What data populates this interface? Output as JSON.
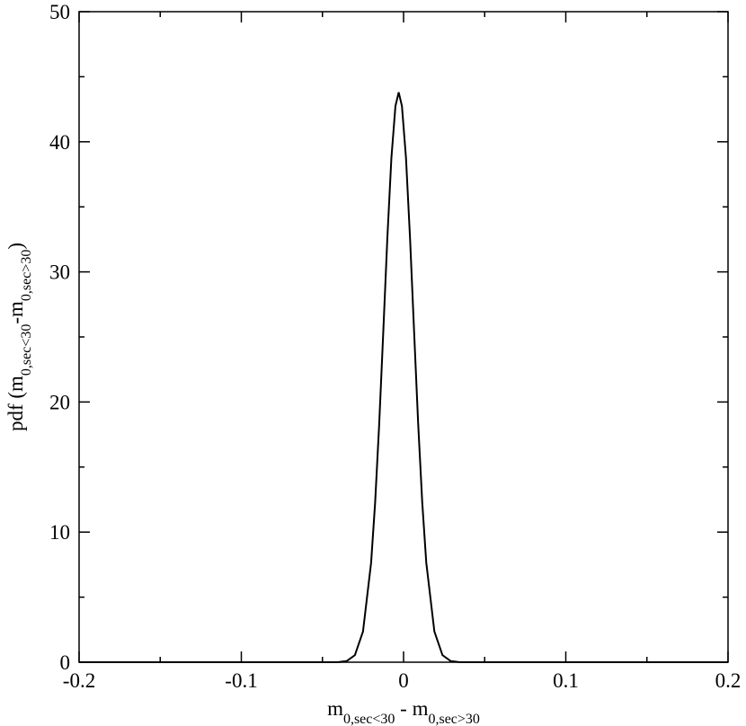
{
  "chart_data": {
    "type": "line",
    "xlabel": [
      {
        "text": "m"
      },
      {
        "text": "0,sec<30",
        "sub": true
      },
      {
        "text": " - m"
      },
      {
        "text": "0,sec>30",
        "sub": true
      }
    ],
    "ylabel": [
      {
        "text": "pdf (m"
      },
      {
        "text": "0,sec<30",
        "sub": true
      },
      {
        "text": "-m"
      },
      {
        "text": "0,sec>30",
        "sub": true
      },
      {
        "text": ")"
      }
    ],
    "x": [
      -0.2,
      -0.05,
      -0.04,
      -0.035,
      -0.03,
      -0.025,
      -0.02,
      -0.0175,
      -0.015,
      -0.0125,
      -0.01,
      -0.0075,
      -0.005,
      -0.003,
      -0.001,
      0.0015,
      0.004,
      0.0065,
      0.009,
      0.0115,
      0.014,
      0.019,
      0.024,
      0.029,
      0.034,
      0.044,
      0.2
    ],
    "series": [
      {
        "color": "#000000",
        "values": [
          0,
          0,
          0.01,
          0.09,
          0.54,
          2.36,
          7.65,
          12.31,
          18.35,
          25.4,
          32.58,
          38.76,
          42.75,
          43.8,
          42.75,
          38.76,
          32.58,
          25.4,
          18.35,
          12.31,
          7.65,
          2.36,
          0.54,
          0.09,
          0.01,
          0,
          0
        ]
      }
    ],
    "xlim": [
      -0.2,
      0.2
    ],
    "xticks": [
      -0.2,
      -0.1,
      0,
      0.1,
      0.2
    ],
    "xminorticks": [
      -0.15,
      -0.05,
      0.05,
      0.15
    ],
    "ylim": [
      0,
      50
    ],
    "yticks": [
      0,
      10,
      20,
      30,
      40,
      50
    ],
    "yminorticks": [
      5,
      15,
      25,
      35,
      45
    ],
    "grid": false
  }
}
